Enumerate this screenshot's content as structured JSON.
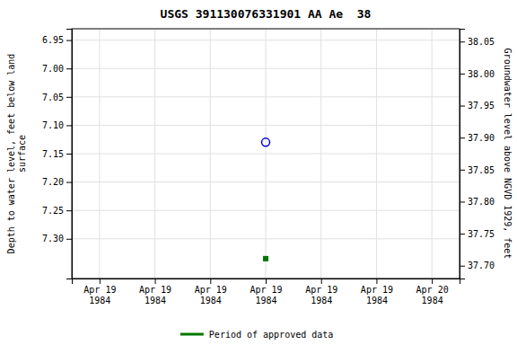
{
  "chart_data": {
    "type": "scatter",
    "title": "USGS 391130076331901 AA Ae  38",
    "y_label": "Depth to water level, feet below land\nsurface",
    "y2_label": "Groundwater level above NGVD 1929, feet",
    "categories": [
      "Apr 19\n1984",
      "Apr 19\n1984",
      "Apr 19\n1984",
      "Apr 19\n1984",
      "Apr 19\n1984",
      "Apr 19\n1984",
      "Apr 20\n1984"
    ],
    "series": [
      {
        "color": "#0000cc",
        "marker": "circle",
        "values": [
          null,
          null,
          null,
          7.13,
          null,
          null,
          null
        ]
      },
      {
        "name": "Period of approved data",
        "color": "#007700",
        "marker": "square",
        "values": [
          null,
          null,
          null,
          7.335,
          null,
          null,
          null
        ]
      }
    ],
    "ylim": [
      7.37,
      6.93
    ],
    "yticks": [
      6.95,
      {
        "value": 7.0,
        "label": "7.00"
      },
      7.05,
      {
        "value": 7.1,
        "label": "7.10"
      },
      7.15,
      {
        "value": 7.2,
        "label": "7.20"
      },
      7.25,
      {
        "value": 7.3,
        "label": "7.30"
      }
    ],
    "y2lim": [
      37.68,
      38.07
    ],
    "y2ticks": [
      38.05,
      {
        "value": 38.0,
        "label": "38.00"
      },
      37.95,
      {
        "value": 37.9,
        "label": "37.90"
      },
      37.85,
      {
        "value": 37.8,
        "label": "37.80"
      },
      37.75,
      {
        "value": 37.7,
        "label": "37.70"
      }
    ],
    "grid": true,
    "legend": "bottom"
  }
}
